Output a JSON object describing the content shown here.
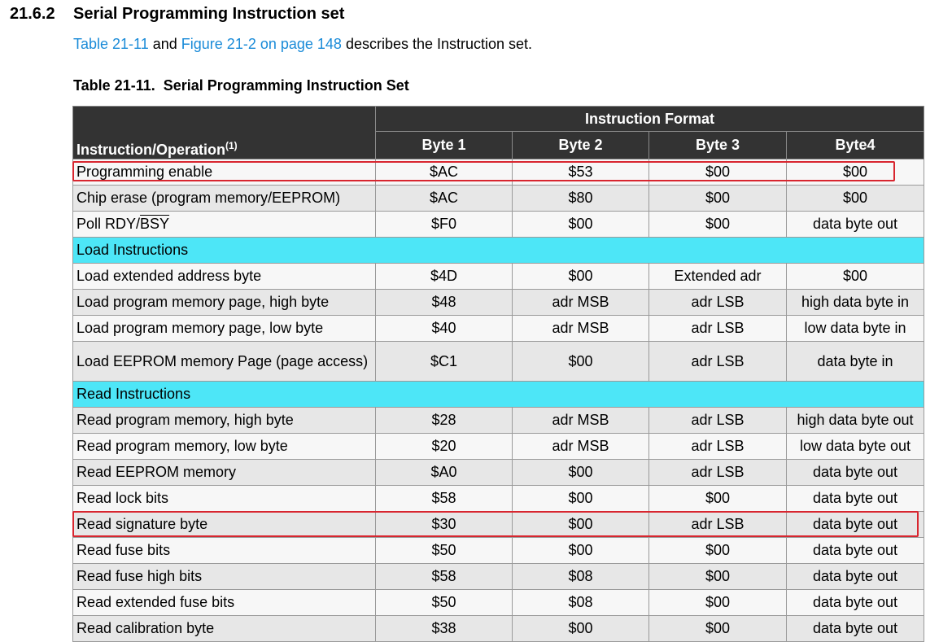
{
  "section": {
    "number": "21.6.2",
    "title": "Serial Programming Instruction set"
  },
  "intro": {
    "link1": "Table 21-11",
    "and": " and ",
    "link2": "Figure 21-2 on page 148",
    "rest": " describes the Instruction set."
  },
  "table": {
    "caption": "Table 21-11.  Serial Programming Instruction Set",
    "header_group": "Instruction Format",
    "op_header": "Instruction/Operation",
    "op_header_note": "(1)",
    "columns": [
      "Byte 1",
      "Byte 2",
      "Byte 3",
      "Byte4"
    ],
    "rows": [
      {
        "op": "Programming enable",
        "b1": "$AC",
        "b2": "$53",
        "b3": "$00",
        "b4": "$00"
      },
      {
        "op": "Chip erase (program memory/EEPROM)",
        "b1": "$AC",
        "b2": "$80",
        "b3": "$00",
        "b4": "$00"
      },
      {
        "op_a": "Poll RDY/",
        "op_b": "BSY",
        "b1": "$F0",
        "b2": "$00",
        "b3": "$00",
        "b4": "data byte out"
      },
      {
        "section": "Load Instructions"
      },
      {
        "op": "Load extended address byte",
        "b1": "$4D",
        "b2": "$00",
        "b3": "Extended adr",
        "b4": "$00"
      },
      {
        "op": "Load program memory page, high byte",
        "b1": "$48",
        "b2": "adr MSB",
        "b3": "adr LSB",
        "b4": "high data byte in"
      },
      {
        "op": "Load program memory page, low byte",
        "b1": "$40",
        "b2": "adr MSB",
        "b3": "adr LSB",
        "b4": "low data byte in"
      },
      {
        "op": "Load EEPROM memory Page (page access)",
        "b1": "$C1",
        "b2": "$00",
        "b3": "adr LSB",
        "b4": "data byte in"
      },
      {
        "section": "Read Instructions"
      },
      {
        "op": "Read program memory, high byte",
        "b1": "$28",
        "b2": "adr MSB",
        "b3": "adr LSB",
        "b4": "high data byte out"
      },
      {
        "op": "Read program memory, low byte",
        "b1": "$20",
        "b2": "adr MSB",
        "b3": "adr LSB",
        "b4": "low data byte out"
      },
      {
        "op": "Read EEPROM memory",
        "b1": "$A0",
        "b2": "$00",
        "b3": "adr LSB",
        "b4": "data byte out"
      },
      {
        "op": "Read lock bits",
        "b1": "$58",
        "b2": "$00",
        "b3": "$00",
        "b4": "data byte out"
      },
      {
        "op": "Read signature byte",
        "b1": "$30",
        "b2": "$00",
        "b3": "adr LSB",
        "b4": "data byte out"
      },
      {
        "op": "Read fuse bits",
        "b1": "$50",
        "b2": "$00",
        "b3": "$00",
        "b4": "data byte out"
      },
      {
        "op": "Read fuse high bits",
        "b1": "$58",
        "b2": "$08",
        "b3": "$00",
        "b4": "data byte out"
      },
      {
        "op": "Read extended fuse bits",
        "b1": "$50",
        "b2": "$08",
        "b3": "$00",
        "b4": "data byte out"
      },
      {
        "op": "Read calibration byte",
        "b1": "$38",
        "b2": "$00",
        "b3": "$00",
        "b4": "data byte out"
      }
    ]
  },
  "colors": {
    "header_bg": "#333333",
    "section_bg": "#4de6f7",
    "link": "#1a8bd8",
    "highlight_box": "#d8262f"
  }
}
